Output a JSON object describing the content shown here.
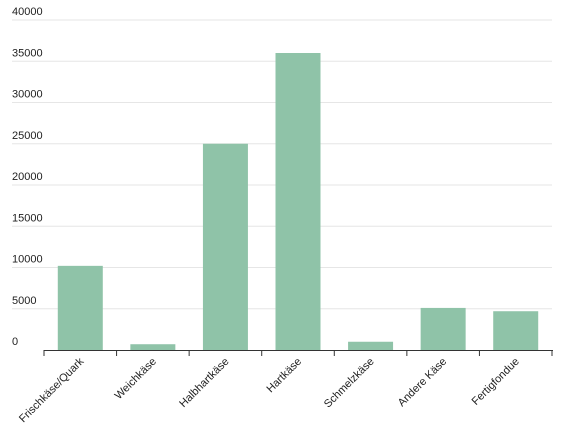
{
  "chart_data": {
    "type": "bar",
    "title": "",
    "xlabel": "",
    "ylabel": "",
    "categories": [
      "Frischkäse/Quark",
      "Weichkäse",
      "Halbhartkäse",
      "Hartkäse",
      "Schmelzkäse",
      "Andere Käse",
      "Fertigfondue"
    ],
    "values": [
      10200,
      700,
      25000,
      36000,
      1000,
      5100,
      4700
    ],
    "ylim": [
      0,
      40000
    ],
    "yticks": [
      "0",
      "5000",
      "10000",
      "15000",
      "20000",
      "25000",
      "30000",
      "35000",
      "40000"
    ],
    "grid": true,
    "legend": "none",
    "bar_color": "#8fc3a8"
  }
}
